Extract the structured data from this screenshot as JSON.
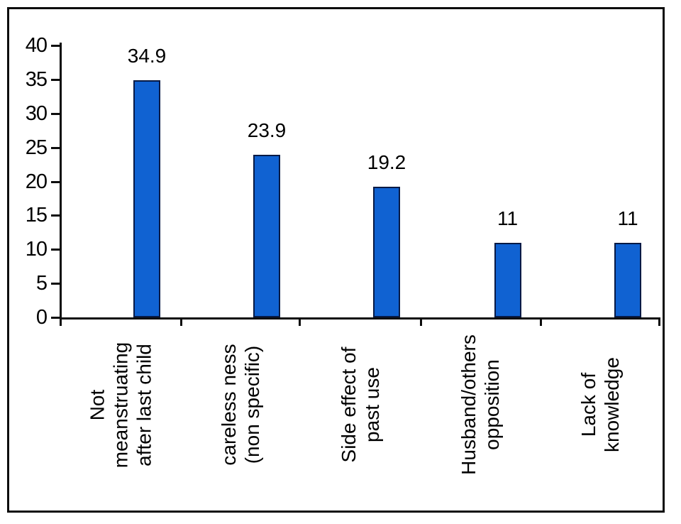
{
  "chart_data": {
    "type": "bar",
    "title": "",
    "categories": [
      "Not\nmeanstruating\nafter last child",
      "careless ness\n(non specific)",
      "Side effect of\npast use",
      "Husband/others\nopposition",
      "Lack of\nknowledge"
    ],
    "values": [
      34.9,
      23.9,
      19.2,
      11,
      11
    ],
    "value_labels": [
      "34.9",
      "23.9",
      "19.2",
      "11",
      "11"
    ],
    "xlabel": "",
    "ylabel": "",
    "y_ticks": [
      0,
      5,
      10,
      15,
      20,
      25,
      30,
      35,
      40
    ],
    "ylim": [
      0,
      40
    ],
    "grid": false,
    "legend": false,
    "colors": {
      "bar_fill": "#1062d2",
      "bar_border": "#071a45",
      "axis": "#0d0d0d",
      "frame_border": "#0d0d0d",
      "background": "#ffffff",
      "text": "#000000"
    }
  }
}
